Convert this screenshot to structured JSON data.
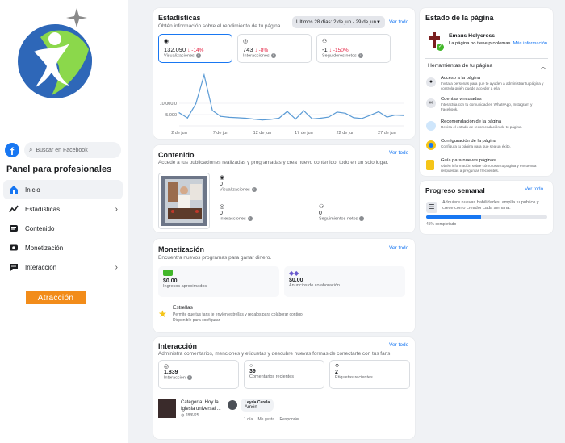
{
  "sidebar": {
    "search_placeholder": "Buscar en Facebook",
    "panel_title": "Panel para profesionales",
    "items": [
      {
        "label": "Inicio",
        "icon": "home-icon"
      },
      {
        "label": "Estadísticas",
        "icon": "insights-icon"
      },
      {
        "label": "Contenido",
        "icon": "content-icon"
      },
      {
        "label": "Monetización",
        "icon": "monetization-icon"
      },
      {
        "label": "Interacción",
        "icon": "interaction-icon"
      }
    ],
    "badge": "Atracción"
  },
  "stats": {
    "title": "Estadísticas",
    "subtitle": "Obtén información sobre el rendimiento de tu página.",
    "range": "Últimos 28 días: 2 de jun - 29 de jun",
    "see_all": "Ver todo",
    "metrics": [
      {
        "value": "132.090",
        "delta": "↓ -14%",
        "label": "Visualizaciones"
      },
      {
        "value": "743",
        "delta": "↓ -8%",
        "label": "Interacciones"
      },
      {
        "value": "-1",
        "delta": "↓ -150%",
        "label": "Seguidores netos"
      }
    ]
  },
  "chart_data": {
    "type": "line",
    "x": [
      "2 de jun",
      "3",
      "4",
      "5",
      "6",
      "7 de jun",
      "8",
      "9",
      "10",
      "11",
      "12 de jun",
      "13",
      "14",
      "15",
      "16",
      "17 de jun",
      "18",
      "19",
      "20",
      "21",
      "22 de jun",
      "23",
      "24",
      "25",
      "26",
      "27 de jun",
      "28",
      "29"
    ],
    "values": [
      5800,
      3500,
      9800,
      22500,
      6800,
      4200,
      3800,
      3600,
      3400,
      3000,
      2600,
      2900,
      3400,
      6400,
      3000,
      6700,
      3100,
      3400,
      3900,
      6100,
      5600,
      3600,
      3300,
      4700,
      6300,
      3900,
      4800,
      4600
    ],
    "xticks": [
      "2 de jun",
      "7 de jun",
      "12 de jun",
      "17 de jun",
      "22 de jun",
      "27 de jun"
    ],
    "yticks": [
      "10.000,0",
      "5.000"
    ],
    "ylim": [
      0,
      25000
    ],
    "color": "#5b9bd5"
  },
  "contenido": {
    "title": "Contenido",
    "subtitle": "Accede a tus publicaciones realizadas y programadas y crea nuevo contenido, todo en un solo lugar.",
    "see_all": "Ver todo",
    "metrics": [
      {
        "value": "0",
        "label": "Visualizaciones"
      },
      {
        "value": "0",
        "label": "Interacciones"
      },
      {
        "value": "0",
        "label": "Seguimientos netos"
      }
    ]
  },
  "monetizacion": {
    "title": "Monetización",
    "subtitle": "Encuentra nuevos programas para ganar dinero.",
    "see_all": "Ver todo",
    "items": [
      {
        "value": "$0.00",
        "label": "Ingresos aproximados"
      },
      {
        "value": "$0.00",
        "label": "Anuncios de colaboración"
      }
    ],
    "stars_title": "Estrellas",
    "stars_desc": "Permite que tus fans te envíen estrellas y regalos para colaborar contigo.",
    "stars_link": "Disponible para configurar"
  },
  "interaccion": {
    "title": "Interacción",
    "subtitle": "Administra comentarios, menciones y etiquetas y descubre nuevas formas de conectarte con tus fans.",
    "see_all": "Ver todo",
    "metrics": [
      {
        "value": "1.839",
        "label": "Interacción"
      },
      {
        "value": "39",
        "label": "Comentarios recientes"
      },
      {
        "value": "2",
        "label": "Etiquetas recientes"
      }
    ],
    "post_title": "Categoría: Hoy la Iglesia universal ...",
    "post_date": "28/6/25",
    "commenter": "Leyda Carela",
    "comment": "Amén",
    "comment_time": "1 día",
    "like": "Me gusta",
    "reply": "Responder"
  },
  "estado": {
    "title": "Estado de la página",
    "page_name": "Emaus Holycross",
    "status_text": "La página no tiene problemas.",
    "more_info": "Más información",
    "tools_title": "Herramientas de tu página",
    "tools": [
      {
        "title": "Acceso a la página",
        "desc": "Invita a personas para que te ayuden a administrar tu página y controla quién puede acceder a ella."
      },
      {
        "title": "Cuentas vinculadas",
        "desc": "Interactúa con tu comunidad en WhatsApp, Instagram y Facebook."
      },
      {
        "title": "Recomendación de la página",
        "desc": "Revisa el estado de recomendación de tu página."
      },
      {
        "title": "Configuración de la página",
        "desc": "Configura tu página para que sea un éxito."
      },
      {
        "title": "Guía para nuevas páginas",
        "desc": "Obtén información sobre cómo usar tu página y encuentra respuestas a preguntas frecuentes."
      }
    ]
  },
  "progreso": {
    "title": "Progreso semanal",
    "see_all": "Ver todo",
    "desc": "Adquiere nuevas habilidades, amplía tu público y crece como creador cada semana.",
    "percent_label": "45% completado",
    "percent": 0.45
  }
}
